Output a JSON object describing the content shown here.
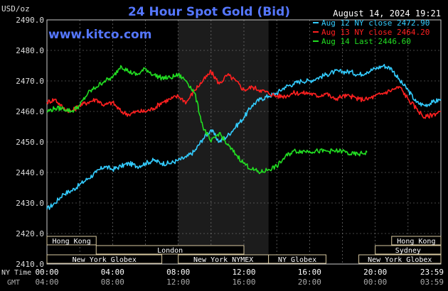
{
  "header": {
    "unit": "USD/oz",
    "title": "24 Hour Spot Gold (Bid)",
    "timestamp": "August 14, 2024 19:21",
    "watermark": "www.kitco.com"
  },
  "legend": [
    {
      "label": "Aug 12 NY close 2472.90",
      "color": "#33ccff"
    },
    {
      "label": "Aug 13 NY close 2464.20",
      "color": "#ff2020"
    },
    {
      "label": "Aug 14 Last 2446.60",
      "color": "#22dd22"
    }
  ],
  "axis_titles": {
    "ny_time": "NY Time",
    "gmt": "GMT"
  },
  "sessions": {
    "row1": [
      {
        "label": "Hong Kong",
        "start": "00:00",
        "end": "03:00"
      },
      {
        "label": "Hong Kong",
        "start": "21:00",
        "end": "24:00"
      }
    ],
    "row2": [
      {
        "label": "London",
        "start": "03:00",
        "end": "12:00"
      },
      {
        "label": "Sydney",
        "start": "20:00",
        "end": "24:00"
      }
    ],
    "row3": [
      {
        "label": "New York Globex",
        "start": "00:00",
        "end": "07:00"
      },
      {
        "label": "New York NYMEX",
        "start": "08:00",
        "end": "13:30"
      },
      {
        "label": "NY Globex",
        "start": "13:30",
        "end": "17:00"
      },
      {
        "label": "New York Globex",
        "start": "19:00",
        "end": "24:00"
      }
    ]
  },
  "chart_data": {
    "type": "line",
    "title": "24 Hour Spot Gold (Bid)",
    "ylabel": "USD/oz",
    "ylim": [
      2410,
      2490
    ],
    "yticks": [
      2490,
      2480,
      2470,
      2460,
      2450,
      2440,
      2430,
      2420,
      2410
    ],
    "xlim": [
      0,
      24
    ],
    "xticks_ny": [
      "00:00",
      "04:00",
      "08:00",
      "12:00",
      "16:00",
      "20:00",
      "23:59"
    ],
    "xticks_gmt": [
      "04:00",
      "08:00",
      "12:00",
      "16:00",
      "20:00",
      "00:00",
      "03:59"
    ],
    "grid": true,
    "shaded_region": [
      8.0,
      13.5
    ],
    "series": [
      {
        "name": "Aug 12 NY close 2472.90",
        "color": "#33ccff",
        "x": [
          0,
          0.5,
          1,
          1.5,
          2,
          2.5,
          3,
          3.5,
          4,
          4.5,
          5,
          5.5,
          6,
          6.5,
          7,
          7.5,
          8,
          8.5,
          9,
          9.5,
          10,
          10.5,
          11,
          11.5,
          12,
          12.5,
          13,
          13.5,
          14,
          14.5,
          15,
          15.5,
          16,
          16.5,
          17,
          17.5,
          18,
          18.5,
          19,
          19.5,
          20,
          20.5,
          21,
          21.5,
          22,
          22.5,
          23,
          23.5,
          24
        ],
        "values": [
          2428,
          2430,
          2433,
          2434,
          2436,
          2438,
          2440,
          2442,
          2441,
          2442,
          2443,
          2442,
          2443,
          2444,
          2443,
          2443,
          2444,
          2445,
          2447,
          2451,
          2454,
          2450,
          2452,
          2455,
          2458,
          2462,
          2464,
          2465,
          2466,
          2468,
          2469,
          2470,
          2470,
          2471,
          2472,
          2473,
          2473,
          2473,
          2472,
          2473,
          2474,
          2475,
          2474,
          2470,
          2467,
          2463,
          2462,
          2463,
          2464
        ]
      },
      {
        "name": "Aug 13 NY close 2464.20",
        "color": "#ff2020",
        "x": [
          0,
          0.5,
          1,
          1.5,
          2,
          2.5,
          3,
          3.5,
          4,
          4.5,
          5,
          5.5,
          6,
          6.5,
          7,
          7.5,
          8,
          8.5,
          9,
          9.5,
          10,
          10.5,
          11,
          11.5,
          12,
          12.5,
          13,
          13.5,
          14,
          14.5,
          15,
          15.5,
          16,
          16.5,
          17,
          17.5,
          18,
          18.5,
          19,
          19.5,
          20,
          20.5,
          21,
          21.5,
          22,
          22.5,
          23,
          23.5,
          24
        ],
        "values": [
          2463,
          2464,
          2461,
          2460,
          2462,
          2463,
          2464,
          2462,
          2463,
          2460,
          2459,
          2460,
          2460,
          2461,
          2463,
          2464,
          2465,
          2463,
          2467,
          2470,
          2473,
          2469,
          2472,
          2470,
          2467,
          2468,
          2467,
          2466,
          2465,
          2465,
          2466,
          2466,
          2466,
          2465,
          2466,
          2464,
          2465,
          2465,
          2464,
          2464,
          2465,
          2466,
          2467,
          2468,
          2464,
          2461,
          2458,
          2459,
          2460
        ]
      },
      {
        "name": "Aug 14 Last 2446.60",
        "color": "#22dd22",
        "x": [
          0,
          0.5,
          1,
          1.5,
          2,
          2.5,
          3,
          3.5,
          4,
          4.5,
          5,
          5.5,
          6,
          6.5,
          7,
          7.5,
          8,
          8.5,
          9,
          9.5,
          10,
          10.5,
          11,
          11.5,
          12,
          12.5,
          13,
          13.5,
          14,
          14.5,
          15,
          15.5,
          16,
          16.5,
          17,
          17.5,
          18,
          18.5,
          19,
          19.5
        ],
        "values": [
          2460,
          2461,
          2461,
          2460,
          2462,
          2466,
          2468,
          2470,
          2471,
          2475,
          2473,
          2472,
          2474,
          2472,
          2471,
          2471,
          2472,
          2470,
          2466,
          2455,
          2450,
          2453,
          2449,
          2446,
          2443,
          2441,
          2440,
          2441,
          2442,
          2445,
          2447,
          2447,
          2447,
          2447,
          2447,
          2447,
          2447,
          2446,
          2446,
          2446.6
        ]
      }
    ]
  }
}
